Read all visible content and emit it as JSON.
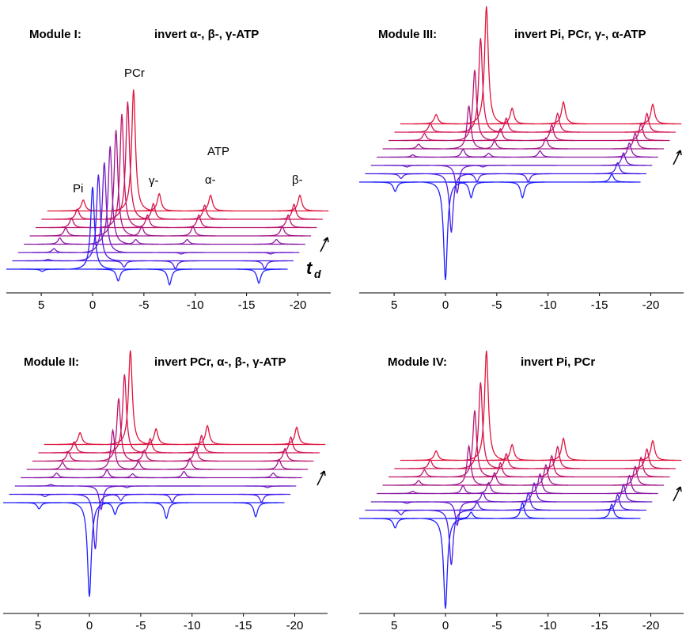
{
  "chart_data": [
    {
      "type": "spectrum",
      "title": "Module I:",
      "subtitle": "invert α-, β-, γ-ATP",
      "annotations": [
        "Pi",
        "PCr",
        "γ-",
        "ATP",
        "α-",
        "β-"
      ],
      "stack_label": "t",
      "stack_label_sub": "d",
      "x": [
        4.9,
        0,
        -2.5,
        -7.5,
        -16.2
      ],
      "xlim": [
        8.4,
        -23.2
      ],
      "xticks": [
        5,
        0,
        -5,
        -10,
        -15,
        -20
      ],
      "series": [
        {
          "color": "#1f1fff",
          "values": [
            -3,
            105,
            -15,
            -20,
            -18
          ]
        },
        {
          "color": "#4a1ee6",
          "values": [
            2,
            110,
            -8,
            -10,
            -10
          ]
        },
        {
          "color": "#6a1dc8",
          "values": [
            5,
            115,
            0,
            -2,
            -2
          ]
        },
        {
          "color": "#8a1aa6",
          "values": [
            8,
            125,
            6,
            6,
            6
          ]
        },
        {
          "color": "#a41888",
          "values": [
            10,
            135,
            12,
            12,
            12
          ]
        },
        {
          "color": "#bc166c",
          "values": [
            12,
            145,
            16,
            16,
            16
          ]
        },
        {
          "color": "#d11452",
          "values": [
            13,
            150,
            20,
            18,
            19
          ]
        },
        {
          "color": "#e0143c",
          "values": [
            14,
            155,
            22,
            20,
            20
          ]
        }
      ]
    },
    {
      "type": "spectrum",
      "title": "Module III:",
      "subtitle": "invert Pi, PCr, γ-, α-ATP",
      "x": [
        4.9,
        0,
        -2.5,
        -7.5,
        -16.2
      ],
      "xlim": [
        8.4,
        -23.2
      ],
      "xticks": [
        5,
        0,
        -5,
        -10,
        -15,
        -20
      ],
      "series": [
        {
          "color": "#1f1fff",
          "values": [
            -12,
            -125,
            -20,
            -20,
            10
          ]
        },
        {
          "color": "#4a1ee6",
          "values": [
            -6,
            -75,
            -10,
            -10,
            14
          ]
        },
        {
          "color": "#6a1dc8",
          "values": [
            -2,
            -35,
            -2,
            0,
            16
          ]
        },
        {
          "color": "#8a1aa6",
          "values": [
            3,
            10,
            5,
            8,
            18
          ]
        },
        {
          "color": "#a41888",
          "values": [
            6,
            55,
            10,
            14,
            20
          ]
        },
        {
          "color": "#bc166c",
          "values": [
            9,
            90,
            15,
            20,
            22
          ]
        },
        {
          "color": "#d11452",
          "values": [
            11,
            120,
            18,
            24,
            24
          ]
        },
        {
          "color": "#e0143c",
          "values": [
            12,
            150,
            20,
            28,
            25
          ]
        }
      ]
    },
    {
      "type": "spectrum",
      "title": "Module II:",
      "subtitle": "invert PCr, α-, β-, γ-ATP",
      "x": [
        4.9,
        0,
        -2.5,
        -7.5,
        -16.2
      ],
      "xlim": [
        8.4,
        -23.2
      ],
      "xticks": [
        5,
        0,
        -5,
        -10,
        -15,
        -20
      ],
      "series": [
        {
          "color": "#1f1fff",
          "values": [
            -8,
            -120,
            -15,
            -20,
            -18
          ]
        },
        {
          "color": "#4a1ee6",
          "values": [
            -3,
            -70,
            -8,
            -10,
            -10
          ]
        },
        {
          "color": "#6a1dc8",
          "values": [
            2,
            -30,
            -2,
            0,
            -2
          ]
        },
        {
          "color": "#8a1aa6",
          "values": [
            6,
            10,
            5,
            8,
            6
          ]
        },
        {
          "color": "#a41888",
          "values": [
            9,
            50,
            10,
            14,
            12
          ]
        },
        {
          "color": "#bc166c",
          "values": [
            12,
            80,
            14,
            18,
            16
          ]
        },
        {
          "color": "#d11452",
          "values": [
            14,
            100,
            18,
            22,
            20
          ]
        },
        {
          "color": "#e0143c",
          "values": [
            15,
            120,
            20,
            24,
            22
          ]
        }
      ]
    },
    {
      "type": "spectrum",
      "title": "Module IV:",
      "subtitle": "invert Pi, PCr",
      "x": [
        4.9,
        0,
        -2.5,
        -7.5,
        -16.2
      ],
      "xlim": [
        8.4,
        -23.2
      ],
      "xticks": [
        5,
        0,
        -5,
        -10,
        -15,
        -20
      ],
      "series": [
        {
          "color": "#1f1fff",
          "values": [
            -12,
            -115,
            8,
            20,
            18
          ]
        },
        {
          "color": "#4a1ee6",
          "values": [
            -6,
            -70,
            10,
            22,
            20
          ]
        },
        {
          "color": "#6a1dc8",
          "values": [
            -2,
            -30,
            12,
            24,
            22
          ]
        },
        {
          "color": "#8a1aa6",
          "values": [
            3,
            10,
            14,
            25,
            23
          ]
        },
        {
          "color": "#a41888",
          "values": [
            6,
            50,
            16,
            26,
            24
          ]
        },
        {
          "color": "#bc166c",
          "values": [
            9,
            85,
            18,
            27,
            25
          ]
        },
        {
          "color": "#d11452",
          "values": [
            11,
            110,
            19,
            28,
            25
          ]
        },
        {
          "color": "#e0143c",
          "values": [
            12,
            140,
            20,
            28,
            25
          ]
        }
      ]
    }
  ]
}
